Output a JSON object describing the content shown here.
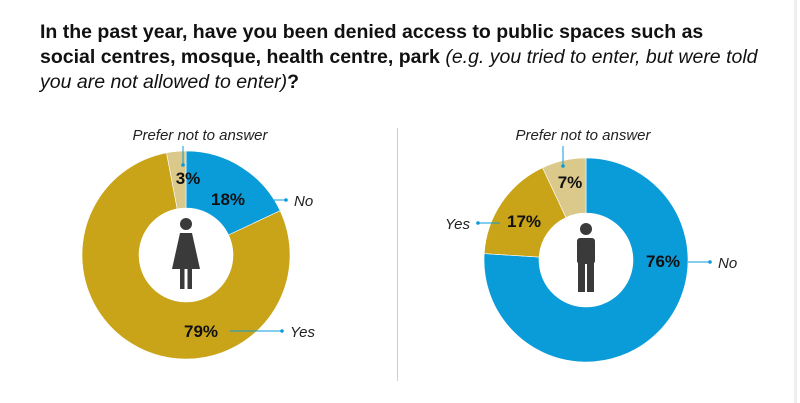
{
  "title": {
    "bold": "In the past year, have you been denied access to public spaces such as social centres, mosque, health centre, park",
    "italic": "(e.g. you tried to enter, but were told you are not allowed to enter)",
    "end": "?"
  },
  "colors": {
    "no": "#0a9bd9",
    "yes": "#c9a318",
    "prefer": "#dac98a",
    "connector": "#0a9bd9"
  },
  "icons": {
    "left": "woman-icon",
    "right": "man-icon"
  },
  "chart_data": [
    {
      "type": "pie",
      "categories": [
        "No",
        "Yes",
        "Prefer not to answer"
      ],
      "values": [
        18,
        79,
        3
      ],
      "value_labels": [
        "18%",
        "79%",
        "3%"
      ]
    },
    {
      "type": "pie",
      "categories": [
        "No",
        "Yes",
        "Prefer not to answer"
      ],
      "values": [
        76,
        17,
        7
      ],
      "value_labels": [
        "76%",
        "17%",
        "7%"
      ]
    }
  ]
}
